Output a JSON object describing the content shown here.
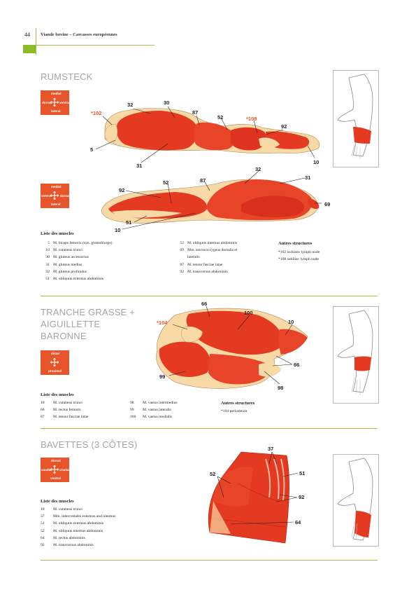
{
  "header": {
    "page_number": "44",
    "running_title": "Viande bovine – Carcasses européennes"
  },
  "sections": [
    {
      "title": "RUMSTECK",
      "orientation_top": {
        "top": "medial",
        "left": "dorsal",
        "right": "ventral",
        "bottom": "lateral"
      },
      "orientation_bottom": {
        "top": "medial",
        "left": "ventral",
        "right": "dorsal",
        "bottom": "lateral"
      },
      "top_labels": [
        "*102",
        "32",
        "30",
        "87",
        "52",
        "*108",
        "92",
        "5",
        "31",
        "10"
      ],
      "bottom_labels": [
        "32",
        "31",
        "92",
        "52",
        "87",
        "69",
        "51",
        "10"
      ],
      "muscle_list_title": "Liste des muscles",
      "muscles_col1": [
        {
          "n": "5",
          "name": "M. biceps femoris (syn. gluteobiceps)"
        },
        {
          "n": "10",
          "name": "M. cutaneus trunci"
        },
        {
          "n": "30",
          "name": "M. gluteus accessorius"
        },
        {
          "n": "31",
          "name": "M. gluteus medius"
        },
        {
          "n": "32",
          "name": "M. gluteus profundus"
        },
        {
          "n": "51",
          "name": "M. obliquus externus abdominis"
        }
      ],
      "muscles_col2": [
        {
          "n": "52",
          "name": "M. obliquus internus abdominis"
        },
        {
          "n": "69",
          "name": "Mm. sacrococcygeus dorsalis et"
        },
        {
          "n": "",
          "name": "lateralis"
        },
        {
          "n": "87",
          "name": "M. tensor fasciae latae"
        },
        {
          "n": "92",
          "name": "M. transversus abdominis"
        }
      ],
      "other_title": "Autres structures",
      "other": [
        "*102 ischiatic lymph node",
        "*108 subiliac lymph node"
      ]
    },
    {
      "title": [
        "TRANCHE GRASSE +",
        "AIGUILLETTE",
        "BARONNE"
      ],
      "orientation": {
        "top": "distal",
        "bottom": "proximal"
      },
      "labels": [
        "66",
        "100",
        "10",
        "*104",
        "66",
        "99",
        "98"
      ],
      "muscle_list_title": "Liste des muscles",
      "muscles_col1": [
        {
          "n": "10",
          "name": "M. cutaneus trunci"
        },
        {
          "n": "66",
          "name": "M. rectus femoris"
        },
        {
          "n": "87",
          "name": "M. tensor fasciae latae"
        }
      ],
      "muscles_col2": [
        {
          "n": "98",
          "name": "M. vastus intermedius"
        },
        {
          "n": "99",
          "name": "M. vastus lateralis"
        },
        {
          "n": "100",
          "name": "M. vastus medialis"
        }
      ],
      "other_title": "Autres structures",
      "other": [
        "*104 periosteum"
      ]
    },
    {
      "title": "BAVETTES (3 CÔTES)",
      "orientation": {
        "top": "dorsal",
        "left": "caudal",
        "right": "cranial",
        "bottom": "ventral"
      },
      "labels": [
        "37",
        "52",
        "51",
        "92",
        "64"
      ],
      "muscle_list_title": "Liste des muscles",
      "muscles": [
        {
          "n": "10",
          "name": "M. cutaneus trunci"
        },
        {
          "n": "37",
          "name": "Mm. intercostales externus and internus"
        },
        {
          "n": "51",
          "name": "M. obliquus externus abdominis"
        },
        {
          "n": "52",
          "name": "M. obliquus internus abdominis"
        },
        {
          "n": "64",
          "name": "M. rectus abdominis"
        },
        {
          "n": "92",
          "name": "M. transversus abdominis"
        }
      ]
    }
  ],
  "colors": {
    "accent": "#e8542a",
    "green_rule": "#9bc43a",
    "meat_red": "#e53a22",
    "fat": "#f6d9a4",
    "title_gray": "#a4a4a4"
  }
}
